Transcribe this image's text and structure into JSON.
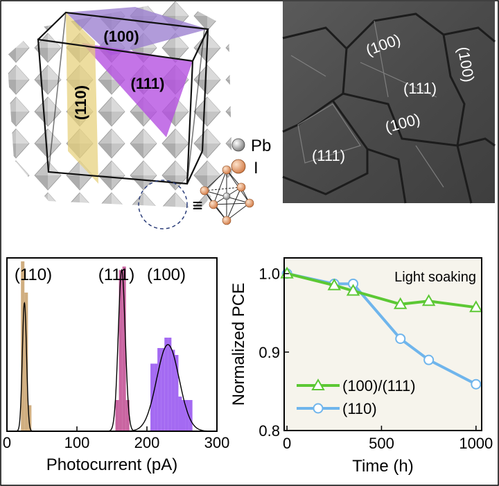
{
  "panels": {
    "crystal": {
      "facet_100": "(100)",
      "facet_111": "(111)",
      "facet_110": "(110)",
      "legend_pb": "Pb",
      "legend_i": "I",
      "equiv_symbol": "≡",
      "colors": {
        "facet_100": "#9b7fd0",
        "facet_111": "#b34de0",
        "facet_110": "#e6d07a",
        "octahedron": "#b8b8b8",
        "pb": "#9a9a9a",
        "i": "#e8a070"
      }
    },
    "sem": {
      "labels": [
        {
          "text": "(100)",
          "rotate": -20
        },
        {
          "text": "(111)",
          "rotate": 0
        },
        {
          "text": "(100)",
          "rotate": 80
        },
        {
          "text": "(100)",
          "rotate": -15
        },
        {
          "text": "(111)",
          "rotate": 0
        }
      ]
    }
  },
  "chart_data": [
    {
      "type": "bar",
      "title": "",
      "xlabel": "Photocurrent (pA)",
      "ylabel": "",
      "xlim": [
        0,
        300
      ],
      "xticks": [
        0,
        100,
        200,
        300
      ],
      "ylim": [
        0,
        1.0
      ],
      "yticks_visible": false,
      "bin_width": 5,
      "annotations": [
        {
          "text": "(110)",
          "x": 25
        },
        {
          "text": "(111)",
          "x": 163
        },
        {
          "text": "(100)",
          "x": 228
        }
      ],
      "series": [
        {
          "name": "(110)",
          "color": "#c8a06a",
          "bins": [
            [
              20,
              0.98
            ],
            [
              25,
              0.8
            ],
            [
              30,
              0.15
            ]
          ],
          "fit": {
            "mean": 25,
            "sigma": 3,
            "amp": 0.74
          }
        },
        {
          "name": "(111)",
          "color": "#c04a90",
          "bins": [
            [
              155,
              0.18
            ],
            [
              160,
              0.93
            ],
            [
              165,
              0.95
            ],
            [
              170,
              0.18
            ]
          ],
          "fit": {
            "mean": 164,
            "sigma": 5,
            "amp": 0.93
          }
        },
        {
          "name": "(100)",
          "color": "#9450f0",
          "bins": [
            [
              205,
              0.39
            ],
            [
              210,
              0.39
            ],
            [
              215,
              0.48
            ],
            [
              220,
              0.48
            ],
            [
              225,
              0.54
            ],
            [
              230,
              0.54
            ],
            [
              235,
              0.47
            ],
            [
              240,
              0.44
            ],
            [
              245,
              0.2
            ],
            [
              250,
              0.18
            ],
            [
              255,
              0.18
            ],
            [
              260,
              0.18
            ]
          ],
          "fit": {
            "mean": 230,
            "sigma": 16,
            "amp": 0.5
          }
        }
      ]
    },
    {
      "type": "line",
      "title": "",
      "xlabel": "Time (h)",
      "ylabel": "Normalized PCE",
      "xlim": [
        -15,
        1030
      ],
      "ylim": [
        0.8,
        1.02
      ],
      "xticks": [
        0,
        500,
        1000
      ],
      "yticks": [
        0.8,
        0.9,
        1.0
      ],
      "ytick_labels": [
        "0.8",
        "0.9",
        "1.0"
      ],
      "annotation": "Light soaking",
      "legend_position": "bottom-left",
      "series": [
        {
          "name": "(100)/(111)",
          "color": "#5cc834",
          "marker": "triangle",
          "x": [
            0,
            250,
            350,
            600,
            750,
            1000
          ],
          "y": [
            1.0,
            0.985,
            0.978,
            0.961,
            0.965,
            0.957
          ]
        },
        {
          "name": "(110)",
          "color": "#6fb5ec",
          "marker": "circle",
          "x": [
            0,
            250,
            350,
            600,
            750,
            1000
          ],
          "y": [
            1.0,
            0.987,
            0.987,
            0.917,
            0.89,
            0.859
          ]
        }
      ]
    }
  ]
}
